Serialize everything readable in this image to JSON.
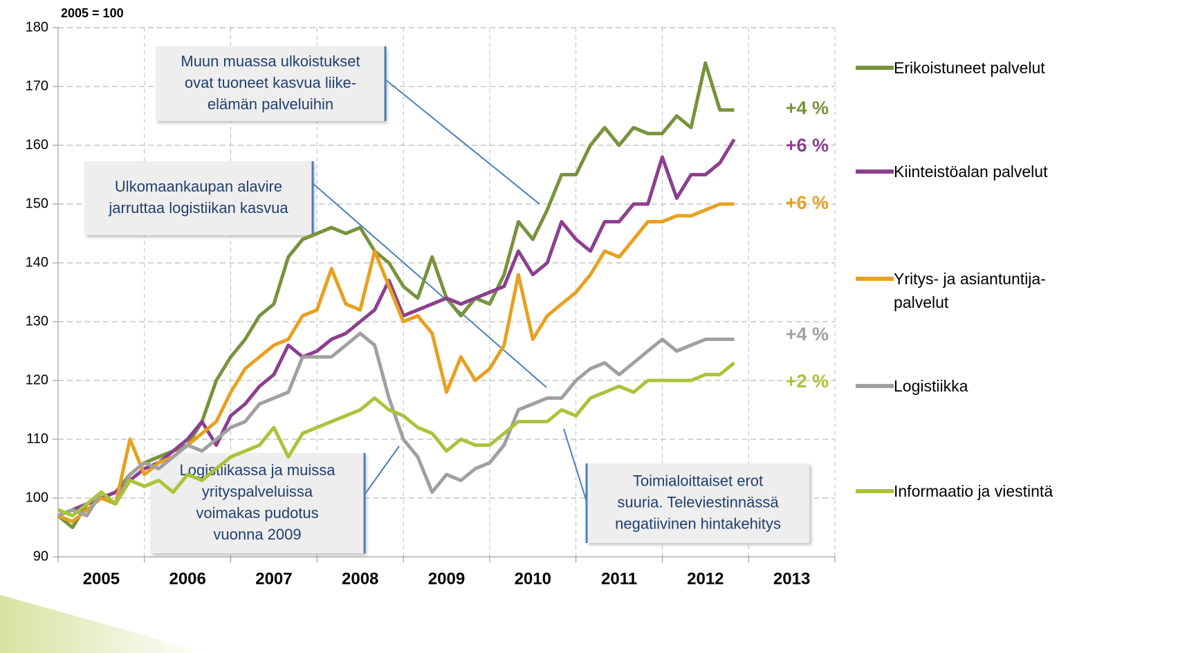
{
  "chart_data": {
    "type": "line",
    "ylabel": "2005 = 100",
    "ylim": [
      90,
      180
    ],
    "yticks": [
      90,
      100,
      110,
      120,
      130,
      140,
      150,
      160,
      170,
      180
    ],
    "xlim": [
      2005,
      2014
    ],
    "xgrid": [
      2005,
      2006,
      2007,
      2008,
      2009,
      2010,
      2011,
      2012,
      2013,
      2014
    ],
    "xticks": [
      {
        "value": 2005.5,
        "label": "2005"
      },
      {
        "value": 2006.5,
        "label": "2006"
      },
      {
        "value": 2007.5,
        "label": "2007"
      },
      {
        "value": 2008.5,
        "label": "2008"
      },
      {
        "value": 2009.5,
        "label": "2009"
      },
      {
        "value": 2010.5,
        "label": "2010"
      },
      {
        "value": 2011.5,
        "label": "2011"
      },
      {
        "value": 2012.5,
        "label": "2012"
      },
      {
        "value": 2013.5,
        "label": "2013"
      }
    ],
    "grid": true,
    "x": [
      2005,
      2005.167,
      2005.333,
      2005.5,
      2005.667,
      2005.833,
      2006,
      2006.167,
      2006.333,
      2006.5,
      2006.667,
      2006.833,
      2007,
      2007.167,
      2007.333,
      2007.5,
      2007.667,
      2007.833,
      2008,
      2008.167,
      2008.333,
      2008.5,
      2008.667,
      2008.833,
      2009,
      2009.167,
      2009.333,
      2009.5,
      2009.667,
      2009.833,
      2010,
      2010.167,
      2010.333,
      2010.5,
      2010.667,
      2010.833,
      2011,
      2011.167,
      2011.333,
      2011.5,
      2011.667,
      2011.833,
      2012,
      2012.167,
      2012.333,
      2012.5,
      2012.667,
      2012.833
    ],
    "series": [
      {
        "name": "Erikoistuneet palvelut",
        "color": "#77933c",
        "end_label": "+4 %",
        "values": [
          97,
          95,
          99,
          100,
          101,
          104,
          106,
          107,
          108,
          109,
          113,
          120,
          124,
          127,
          131,
          133,
          141,
          144,
          145,
          146,
          145,
          146,
          142,
          140,
          136,
          134,
          141,
          134,
          131,
          134,
          133,
          138,
          147,
          144,
          149,
          155,
          155,
          160,
          163,
          160,
          163,
          162,
          162,
          165,
          163,
          174,
          166,
          166
        ]
      },
      {
        "name": "Kiinteistöalan palvelut",
        "color": "#8c3f8f",
        "end_label": "+6 %",
        "values": [
          97,
          98,
          99,
          100,
          101,
          103,
          105,
          106,
          108,
          110,
          113,
          109,
          114,
          116,
          119,
          121,
          126,
          124,
          125,
          127,
          128,
          130,
          132,
          137,
          131,
          132,
          133,
          134,
          133,
          134,
          135,
          136,
          142,
          138,
          140,
          147,
          144,
          142,
          147,
          147,
          150,
          150,
          158,
          151,
          155,
          155,
          157,
          161
        ]
      },
      {
        "name": "Yritys- ja asiantuntija-palvelut",
        "color": "#e8a020",
        "end_label": "+6 %",
        "values": [
          97,
          96,
          98,
          100,
          99,
          110,
          104,
          106,
          107,
          109,
          111,
          113,
          118,
          122,
          124,
          126,
          127,
          131,
          132,
          139,
          133,
          132,
          142,
          136,
          130,
          131,
          128,
          118,
          124,
          120,
          122,
          126,
          138,
          127,
          131,
          133,
          135,
          138,
          142,
          141,
          144,
          147,
          147,
          148,
          148,
          149,
          150,
          150
        ]
      },
      {
        "name": "Logistiikka",
        "color": "#a0a0a0",
        "end_label": "+4 %",
        "values": [
          97,
          98,
          97,
          101,
          99,
          104,
          106,
          105,
          107,
          109,
          108,
          110,
          112,
          113,
          116,
          117,
          118,
          124,
          124,
          124,
          126,
          128,
          126,
          117,
          110,
          107,
          101,
          104,
          103,
          105,
          106,
          109,
          115,
          116,
          117,
          117,
          120,
          122,
          123,
          121,
          123,
          125,
          127,
          125,
          126,
          127,
          127,
          127
        ]
      },
      {
        "name": "Informaatio ja viestintä",
        "color": "#a9c43a",
        "end_label": "+2 %",
        "values": [
          98,
          97,
          99,
          101,
          99,
          103,
          102,
          103,
          101,
          104,
          103,
          105,
          107,
          108,
          109,
          112,
          107,
          111,
          112,
          113,
          114,
          115,
          117,
          115,
          114,
          112,
          111,
          108,
          110,
          109,
          109,
          111,
          113,
          113,
          113,
          115,
          114,
          117,
          118,
          119,
          118,
          120,
          120,
          120,
          120,
          121,
          121,
          123
        ]
      }
    ],
    "annotations": [
      {
        "lines": [
          "Muun muassa ulkoistukset",
          "ovat tuoneet kasvua liike-",
          "elämän palveluihin"
        ]
      },
      {
        "lines": [
          "Ulkomaankaupan alavire",
          "jarruttaa logistiikan kasvua"
        ]
      },
      {
        "lines": [
          "Logistiikassa ja muissa",
          "yrityspalveluissa",
          "voimakas pudotus",
          "vuonna 2009"
        ]
      },
      {
        "lines": [
          "Toimialoittaiset erot",
          "suuria. Televiestinnässä",
          "negatiivinen hintakehitys"
        ]
      }
    ]
  }
}
